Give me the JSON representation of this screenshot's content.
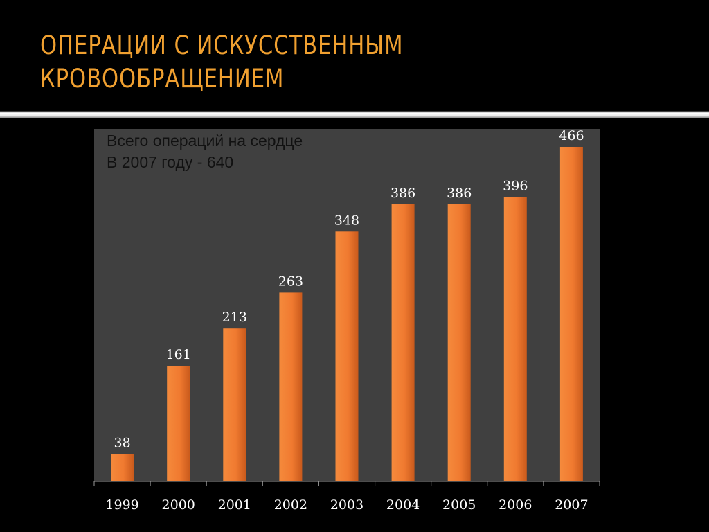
{
  "slide": {
    "title_line1": "ОПЕРАЦИИ  С  ИСКУССТВЕННЫМ",
    "title_line2": "КРОВООБРАЩЕНИЕМ",
    "title_color": "#f0a030",
    "background": "#000000"
  },
  "chart_data": {
    "type": "bar",
    "title": "",
    "xlabel": "",
    "ylabel": "",
    "categories": [
      "1999",
      "2000",
      "2001",
      "2002",
      "2003",
      "2004",
      "2005",
      "2006",
      "2007"
    ],
    "values": [
      38,
      161,
      213,
      263,
      348,
      386,
      386,
      396,
      466
    ],
    "ylim": [
      0,
      500
    ],
    "grid": false,
    "legend": "none",
    "data_labels": true,
    "bar_color": "#f07a30",
    "plot_background": "#404040",
    "annotation_line1": "Всего операций на сердце",
    "annotation_line2": "В 2007 году - 640"
  }
}
